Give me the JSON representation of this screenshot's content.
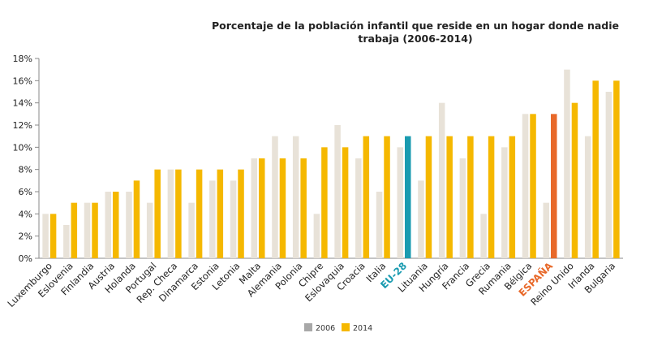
{
  "chart_data": {
    "type": "bar",
    "title_line1": "Porcentaje de la población infantil que reside en un hogar donde nadie",
    "title_line2": "trabaja (2006-2014)",
    "xlabel": "",
    "ylabel": "",
    "ylim": [
      0,
      18
    ],
    "ytick_step": 2,
    "ytick_suffix": "%",
    "grid": false,
    "legend_position": "bottom-center",
    "categories": [
      "Luxemburgo",
      "Eslovenia",
      "Finlandia",
      "Austria",
      "Holanda",
      "Portugal",
      "Rep. Checa",
      "Dinamarca",
      "Estonia",
      "Letonia",
      "Malta",
      "Alemania",
      "Polonia",
      "Chipre",
      "Eslovaquia",
      "Croacia",
      "Italia",
      "EU-28",
      "Lituania",
      "Hungría",
      "Francia",
      "Grecia",
      "Rumania",
      "Bélgica",
      "ESPAÑA",
      "Reino Unido",
      "Irlanda",
      "Bulgaria"
    ],
    "highlight": {
      "EU-28": "#1a9bb0",
      "ESPAÑA": "#e8692a"
    },
    "series": [
      {
        "name": "2006",
        "color": "#e8e2d8",
        "values": [
          4,
          3,
          5,
          6,
          6,
          5,
          8,
          5,
          7,
          7,
          9,
          11,
          11,
          4,
          12,
          9,
          6,
          10,
          7,
          14,
          9,
          4,
          10,
          13,
          5,
          17,
          11,
          15
        ]
      },
      {
        "name": "2014",
        "color": "#f5b800",
        "values": [
          4,
          5,
          5,
          6,
          7,
          8,
          8,
          8,
          8,
          8,
          9,
          9,
          9,
          10,
          10,
          11,
          11,
          11,
          11,
          11,
          11,
          11,
          11,
          13,
          13,
          14,
          16,
          16
        ]
      }
    ],
    "legend_swatch_colors": {
      "2006": "#a8a8a8",
      "2014": "#f5b800"
    }
  }
}
